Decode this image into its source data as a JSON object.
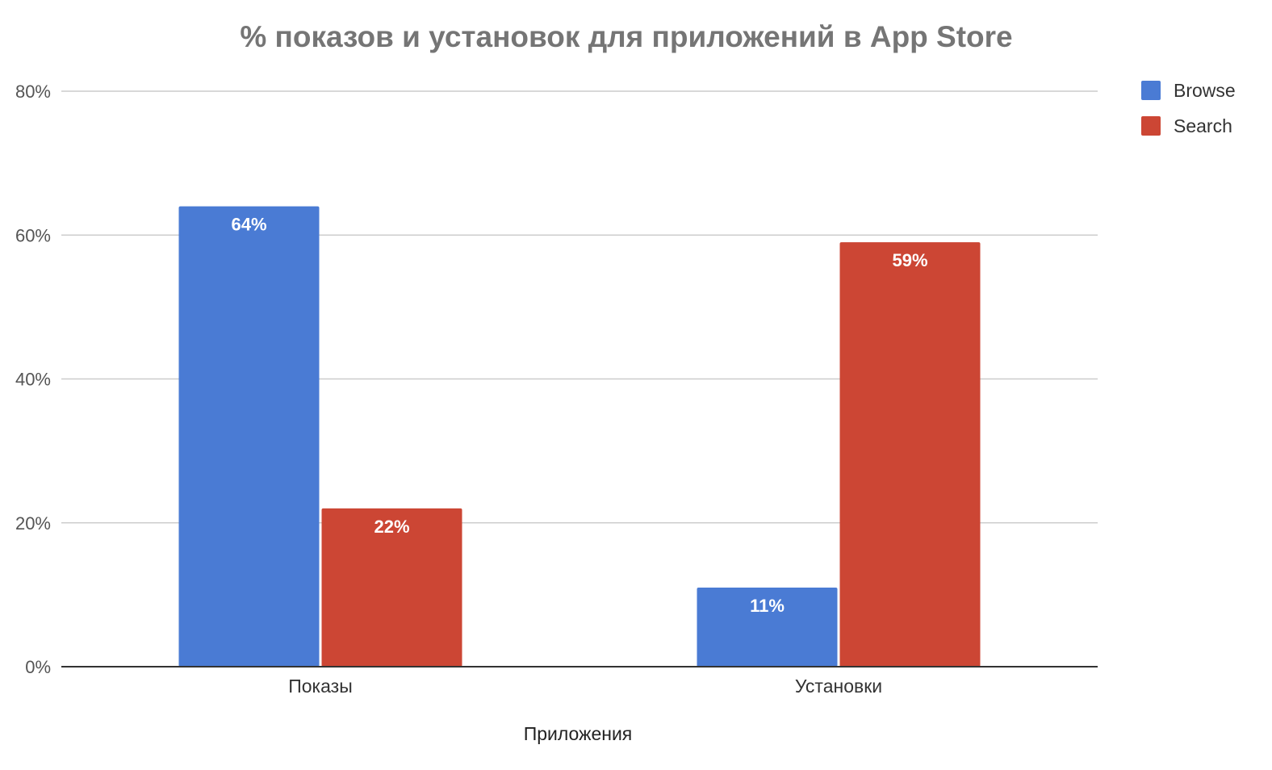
{
  "chart_data": {
    "type": "bar",
    "title": "% показов и установок для приложений в App Store",
    "xlabel": "Приложения",
    "ylabel": "",
    "categories": [
      "Показы",
      "Установки"
    ],
    "series": [
      {
        "name": "Browse",
        "values": [
          64,
          11
        ],
        "labels": [
          "64%",
          "11%"
        ],
        "color": "#4a7bd4"
      },
      {
        "name": "Search",
        "values": [
          22,
          59
        ],
        "labels": [
          "22%",
          "59%"
        ],
        "color": "#cc4634"
      }
    ],
    "ylim": [
      0,
      80
    ],
    "yticks": [
      0,
      20,
      40,
      60,
      80
    ],
    "ytick_labels": [
      "0%",
      "20%",
      "40%",
      "60%",
      "80%"
    ],
    "grid": true,
    "legend": "right"
  }
}
